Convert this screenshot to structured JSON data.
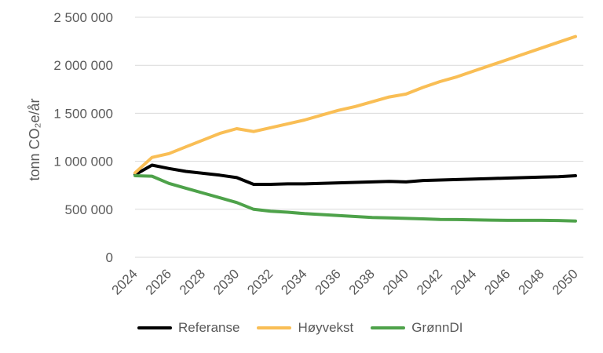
{
  "chart_data": {
    "type": "line",
    "ylabel": "tonn CO₂e/år",
    "xlabel": "",
    "ylim": [
      0,
      2500000
    ],
    "yticks": [
      0,
      500000,
      1000000,
      1500000,
      2000000,
      2500000
    ],
    "ytick_labels": [
      "0",
      "500 000",
      "1 000 000",
      "1 500 000",
      "2 000 000",
      "2 500 000"
    ],
    "xticks": [
      2024,
      2026,
      2028,
      2030,
      2032,
      2034,
      2036,
      2038,
      2040,
      2042,
      2044,
      2046,
      2048,
      2050
    ],
    "x": [
      2024,
      2025,
      2026,
      2027,
      2028,
      2029,
      2030,
      2031,
      2032,
      2033,
      2034,
      2035,
      2036,
      2037,
      2038,
      2039,
      2040,
      2041,
      2042,
      2043,
      2044,
      2045,
      2046,
      2047,
      2048,
      2049,
      2050
    ],
    "grid": true,
    "legend_position": "bottom",
    "series": [
      {
        "name": "Referanse",
        "color": "#000000",
        "values": [
          860000,
          960000,
          925000,
          895000,
          875000,
          855000,
          830000,
          760000,
          760000,
          765000,
          765000,
          770000,
          775000,
          780000,
          785000,
          790000,
          785000,
          800000,
          805000,
          810000,
          815000,
          820000,
          825000,
          830000,
          835000,
          840000,
          850000
        ]
      },
      {
        "name": "Høyvekst",
        "color": "#F9BE55",
        "values": [
          880000,
          1040000,
          1080000,
          1150000,
          1220000,
          1290000,
          1340000,
          1310000,
          1350000,
          1390000,
          1430000,
          1480000,
          1530000,
          1570000,
          1620000,
          1670000,
          1700000,
          1770000,
          1830000,
          1880000,
          1940000,
          2000000,
          2060000,
          2120000,
          2180000,
          2240000,
          2300000
        ]
      },
      {
        "name": "GrønnDI",
        "color": "#4EA24A",
        "values": [
          850000,
          845000,
          770000,
          720000,
          670000,
          620000,
          570000,
          500000,
          480000,
          470000,
          455000,
          445000,
          435000,
          425000,
          415000,
          410000,
          405000,
          400000,
          395000,
          393000,
          390000,
          387000,
          385000,
          385000,
          385000,
          383000,
          378000
        ]
      }
    ]
  }
}
